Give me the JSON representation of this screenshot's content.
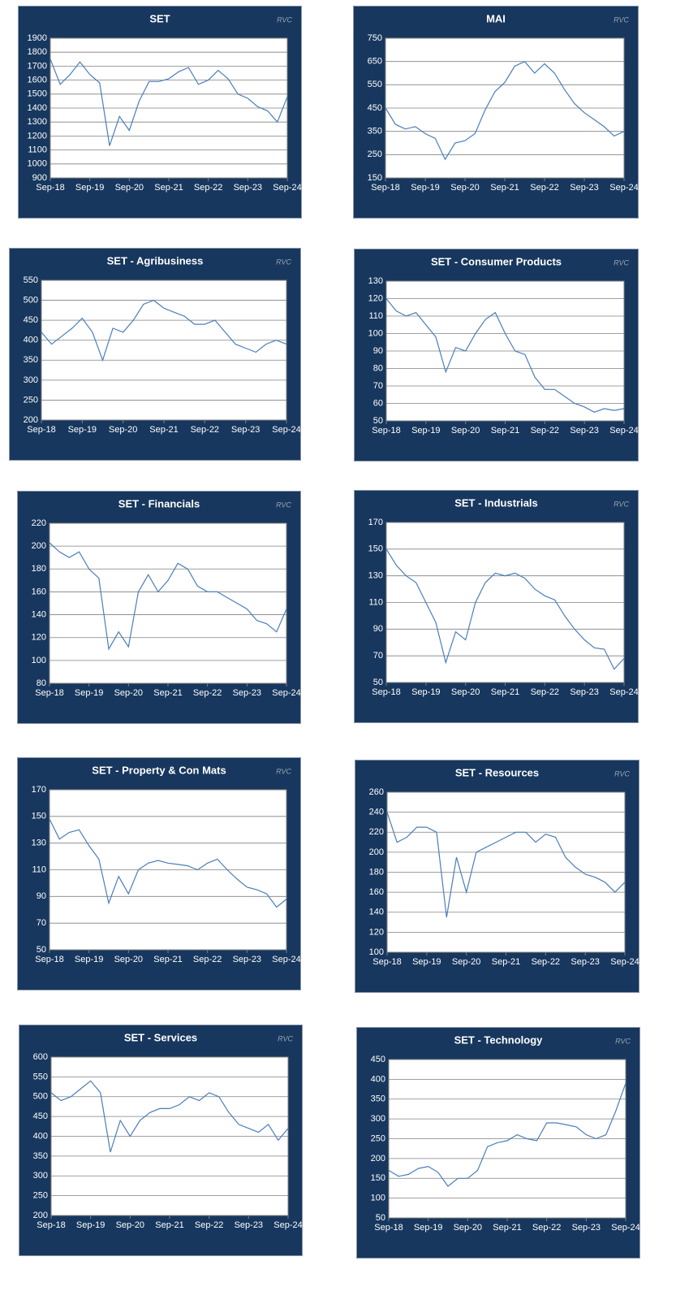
{
  "chart_data": [
    {
      "type": "line",
      "title": "SET",
      "source": "RVC",
      "color": "#4a7ebb",
      "grid": true,
      "x": [
        "Sep-18",
        "Dec-18",
        "Mar-19",
        "Jun-19",
        "Sep-19",
        "Dec-19",
        "Mar-20",
        "Jun-20",
        "Sep-20",
        "Dec-20",
        "Mar-21",
        "Jun-21",
        "Sep-21",
        "Dec-21",
        "Mar-22",
        "Jun-22",
        "Sep-22",
        "Dec-22",
        "Mar-23",
        "Jun-23",
        "Sep-23",
        "Dec-23",
        "Mar-24",
        "Jun-24",
        "Sep-24"
      ],
      "xticks": [
        "Sep-18",
        "Sep-19",
        "Sep-20",
        "Sep-21",
        "Sep-22",
        "Sep-23",
        "Sep-24"
      ],
      "values": [
        1750,
        1570,
        1640,
        1730,
        1640,
        1580,
        1130,
        1340,
        1240,
        1450,
        1590,
        1590,
        1610,
        1660,
        1690,
        1570,
        1600,
        1670,
        1610,
        1500,
        1470,
        1410,
        1380,
        1300,
        1480
      ],
      "ylim": [
        900,
        1900
      ],
      "yticks": [
        900,
        1000,
        1100,
        1200,
        1300,
        1400,
        1500,
        1600,
        1700,
        1800,
        1900
      ]
    },
    {
      "type": "line",
      "title": "MAI",
      "source": "RVC",
      "color": "#4a7ebb",
      "grid": true,
      "x": [
        "Sep-18",
        "Dec-18",
        "Mar-19",
        "Jun-19",
        "Sep-19",
        "Dec-19",
        "Mar-20",
        "Jun-20",
        "Sep-20",
        "Dec-20",
        "Mar-21",
        "Jun-21",
        "Sep-21",
        "Dec-21",
        "Mar-22",
        "Jun-22",
        "Sep-22",
        "Dec-22",
        "Mar-23",
        "Jun-23",
        "Sep-23",
        "Dec-23",
        "Mar-24",
        "Jun-24",
        "Sep-24"
      ],
      "xticks": [
        "Sep-18",
        "Sep-19",
        "Sep-20",
        "Sep-21",
        "Sep-22",
        "Sep-23",
        "Sep-24"
      ],
      "values": [
        450,
        380,
        360,
        370,
        340,
        320,
        230,
        300,
        310,
        340,
        440,
        520,
        560,
        630,
        650,
        600,
        640,
        600,
        530,
        470,
        430,
        400,
        370,
        330,
        350
      ],
      "ylim": [
        150,
        750
      ],
      "yticks": [
        150,
        250,
        350,
        450,
        550,
        650,
        750
      ]
    },
    {
      "type": "line",
      "title": "SET - Agribusiness",
      "source": "RVC",
      "color": "#4a7ebb",
      "grid": true,
      "x": [
        "Sep-18",
        "Dec-18",
        "Mar-19",
        "Jun-19",
        "Sep-19",
        "Dec-19",
        "Mar-20",
        "Jun-20",
        "Sep-20",
        "Dec-20",
        "Mar-21",
        "Jun-21",
        "Sep-21",
        "Dec-21",
        "Mar-22",
        "Jun-22",
        "Sep-22",
        "Dec-22",
        "Mar-23",
        "Jun-23",
        "Sep-23",
        "Dec-23",
        "Mar-24",
        "Jun-24",
        "Sep-24"
      ],
      "xticks": [
        "Sep-18",
        "Sep-19",
        "Sep-20",
        "Sep-21",
        "Sep-22",
        "Sep-23",
        "Sep-24"
      ],
      "values": [
        420,
        390,
        410,
        430,
        455,
        420,
        350,
        430,
        420,
        450,
        490,
        500,
        480,
        470,
        460,
        440,
        440,
        450,
        420,
        390,
        380,
        370,
        390,
        400,
        390
      ],
      "ylim": [
        200,
        550
      ],
      "yticks": [
        200,
        250,
        300,
        350,
        400,
        450,
        500,
        550
      ]
    },
    {
      "type": "line",
      "title": "SET - Consumer Products",
      "source": "RVC",
      "color": "#4a7ebb",
      "grid": true,
      "x": [
        "Sep-18",
        "Dec-18",
        "Mar-19",
        "Jun-19",
        "Sep-19",
        "Dec-19",
        "Mar-20",
        "Jun-20",
        "Sep-20",
        "Dec-20",
        "Mar-21",
        "Jun-21",
        "Sep-21",
        "Dec-21",
        "Mar-22",
        "Jun-22",
        "Sep-22",
        "Dec-22",
        "Mar-23",
        "Jun-23",
        "Sep-23",
        "Dec-23",
        "Mar-24",
        "Jun-24",
        "Sep-24"
      ],
      "xticks": [
        "Sep-18",
        "Sep-19",
        "Sep-20",
        "Sep-21",
        "Sep-22",
        "Sep-23",
        "Sep-24"
      ],
      "values": [
        120,
        113,
        110,
        112,
        105,
        98,
        78,
        92,
        90,
        100,
        108,
        112,
        100,
        90,
        88,
        75,
        68,
        68,
        64,
        60,
        58,
        55,
        57,
        56,
        57
      ],
      "ylim": [
        50,
        130
      ],
      "yticks": [
        50,
        60,
        70,
        80,
        90,
        100,
        110,
        120,
        130
      ]
    },
    {
      "type": "line",
      "title": "SET - Financials",
      "source": "RVC",
      "color": "#4a7ebb",
      "grid": true,
      "x": [
        "Sep-18",
        "Dec-18",
        "Mar-19",
        "Jun-19",
        "Sep-19",
        "Dec-19",
        "Mar-20",
        "Jun-20",
        "Sep-20",
        "Dec-20",
        "Mar-21",
        "Jun-21",
        "Sep-21",
        "Dec-21",
        "Mar-22",
        "Jun-22",
        "Sep-22",
        "Dec-22",
        "Mar-23",
        "Jun-23",
        "Sep-23",
        "Dec-23",
        "Mar-24",
        "Jun-24",
        "Sep-24"
      ],
      "xticks": [
        "Sep-18",
        "Sep-19",
        "Sep-20",
        "Sep-21",
        "Sep-22",
        "Sep-23",
        "Sep-24"
      ],
      "values": [
        203,
        195,
        190,
        195,
        180,
        172,
        110,
        125,
        112,
        160,
        175,
        160,
        170,
        185,
        180,
        165,
        160,
        160,
        155,
        150,
        145,
        135,
        132,
        125,
        145
      ],
      "ylim": [
        80,
        220
      ],
      "yticks": [
        80,
        100,
        120,
        140,
        160,
        180,
        200,
        220
      ]
    },
    {
      "type": "line",
      "title": "SET - Industrials",
      "source": "RVC",
      "color": "#4a7ebb",
      "grid": true,
      "x": [
        "Sep-18",
        "Dec-18",
        "Mar-19",
        "Jun-19",
        "Sep-19",
        "Dec-19",
        "Mar-20",
        "Jun-20",
        "Sep-20",
        "Dec-20",
        "Mar-21",
        "Jun-21",
        "Sep-21",
        "Dec-21",
        "Mar-22",
        "Jun-22",
        "Sep-22",
        "Dec-22",
        "Mar-23",
        "Jun-23",
        "Sep-23",
        "Dec-23",
        "Mar-24",
        "Jun-24",
        "Sep-24"
      ],
      "xticks": [
        "Sep-18",
        "Sep-19",
        "Sep-20",
        "Sep-21",
        "Sep-22",
        "Sep-23",
        "Sep-24"
      ],
      "values": [
        150,
        138,
        130,
        125,
        110,
        95,
        65,
        88,
        82,
        110,
        125,
        132,
        130,
        132,
        128,
        120,
        115,
        112,
        100,
        90,
        82,
        76,
        75,
        60,
        68
      ],
      "ylim": [
        50,
        170
      ],
      "yticks": [
        50,
        70,
        90,
        110,
        130,
        150,
        170
      ]
    },
    {
      "type": "line",
      "title": "SET - Property & Con Mats",
      "source": "RVC",
      "color": "#4a7ebb",
      "grid": true,
      "x": [
        "Sep-18",
        "Dec-18",
        "Mar-19",
        "Jun-19",
        "Sep-19",
        "Dec-19",
        "Mar-20",
        "Jun-20",
        "Sep-20",
        "Dec-20",
        "Mar-21",
        "Jun-21",
        "Sep-21",
        "Dec-21",
        "Mar-22",
        "Jun-22",
        "Sep-22",
        "Dec-22",
        "Mar-23",
        "Jun-23",
        "Sep-23",
        "Dec-23",
        "Mar-24",
        "Jun-24",
        "Sep-24"
      ],
      "xticks": [
        "Sep-18",
        "Sep-19",
        "Sep-20",
        "Sep-21",
        "Sep-22",
        "Sep-23",
        "Sep-24"
      ],
      "values": [
        148,
        133,
        138,
        140,
        128,
        118,
        85,
        105,
        92,
        110,
        115,
        117,
        115,
        114,
        113,
        110,
        115,
        118,
        110,
        103,
        97,
        95,
        92,
        82,
        88
      ],
      "ylim": [
        50,
        170
      ],
      "yticks": [
        50,
        70,
        90,
        110,
        130,
        150,
        170
      ]
    },
    {
      "type": "line",
      "title": "SET - Resources",
      "source": "RVC",
      "color": "#4a7ebb",
      "grid": true,
      "x": [
        "Sep-18",
        "Dec-18",
        "Mar-19",
        "Jun-19",
        "Sep-19",
        "Dec-19",
        "Mar-20",
        "Jun-20",
        "Sep-20",
        "Dec-20",
        "Mar-21",
        "Jun-21",
        "Sep-21",
        "Dec-21",
        "Mar-22",
        "Jun-22",
        "Sep-22",
        "Dec-22",
        "Mar-23",
        "Jun-23",
        "Sep-23",
        "Dec-23",
        "Mar-24",
        "Jun-24",
        "Sep-24"
      ],
      "xticks": [
        "Sep-18",
        "Sep-19",
        "Sep-20",
        "Sep-21",
        "Sep-22",
        "Sep-23",
        "Sep-24"
      ],
      "values": [
        240,
        210,
        215,
        225,
        225,
        220,
        135,
        195,
        160,
        200,
        205,
        210,
        215,
        220,
        220,
        210,
        218,
        215,
        195,
        185,
        178,
        175,
        170,
        160,
        170
      ],
      "ylim": [
        100,
        260
      ],
      "yticks": [
        100,
        120,
        140,
        160,
        180,
        200,
        220,
        240,
        260
      ]
    },
    {
      "type": "line",
      "title": "SET - Services",
      "source": "RVC",
      "color": "#4a7ebb",
      "grid": true,
      "x": [
        "Sep-18",
        "Dec-18",
        "Mar-19",
        "Jun-19",
        "Sep-19",
        "Dec-19",
        "Mar-20",
        "Jun-20",
        "Sep-20",
        "Dec-20",
        "Mar-21",
        "Jun-21",
        "Sep-21",
        "Dec-21",
        "Mar-22",
        "Jun-22",
        "Sep-22",
        "Dec-22",
        "Mar-23",
        "Jun-23",
        "Sep-23",
        "Dec-23",
        "Mar-24",
        "Jun-24",
        "Sep-24"
      ],
      "xticks": [
        "Sep-18",
        "Sep-19",
        "Sep-20",
        "Sep-21",
        "Sep-22",
        "Sep-23",
        "Sep-24"
      ],
      "values": [
        510,
        490,
        500,
        520,
        540,
        510,
        360,
        440,
        400,
        440,
        460,
        470,
        470,
        480,
        500,
        490,
        510,
        500,
        460,
        430,
        420,
        410,
        430,
        390,
        420
      ],
      "ylim": [
        200,
        600
      ],
      "yticks": [
        200,
        250,
        300,
        350,
        400,
        450,
        500,
        550,
        600
      ]
    },
    {
      "type": "line",
      "title": "SET - Technology",
      "source": "RVC",
      "color": "#4a7ebb",
      "grid": true,
      "x": [
        "Sep-18",
        "Dec-18",
        "Mar-19",
        "Jun-19",
        "Sep-19",
        "Dec-19",
        "Mar-20",
        "Jun-20",
        "Sep-20",
        "Dec-20",
        "Mar-21",
        "Jun-21",
        "Sep-21",
        "Dec-21",
        "Mar-22",
        "Jun-22",
        "Sep-22",
        "Dec-22",
        "Mar-23",
        "Jun-23",
        "Sep-23",
        "Dec-23",
        "Mar-24",
        "Jun-24",
        "Sep-24"
      ],
      "xticks": [
        "Sep-18",
        "Sep-19",
        "Sep-20",
        "Sep-21",
        "Sep-22",
        "Sep-23",
        "Sep-24"
      ],
      "values": [
        170,
        155,
        160,
        175,
        180,
        165,
        130,
        150,
        150,
        170,
        230,
        240,
        245,
        260,
        250,
        245,
        290,
        290,
        285,
        280,
        260,
        250,
        260,
        320,
        390
      ],
      "ylim": [
        50,
        450
      ],
      "yticks": [
        50,
        100,
        150,
        200,
        250,
        300,
        350,
        400,
        450
      ]
    }
  ]
}
